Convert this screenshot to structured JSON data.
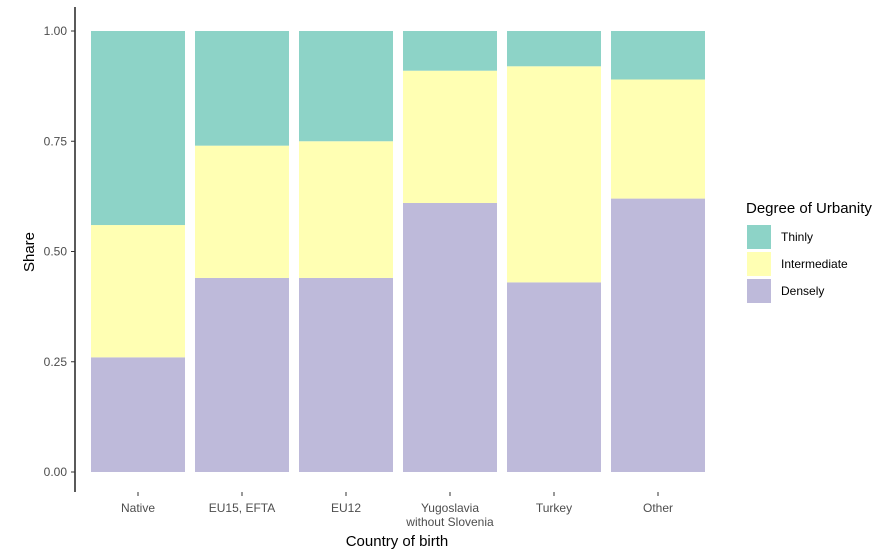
{
  "chart_data": {
    "type": "bar",
    "stacked": true,
    "normalized": true,
    "title": "",
    "xlabel": "Country of birth",
    "ylabel": "Share",
    "ylim": [
      0,
      1
    ],
    "yticks": [
      0.0,
      0.25,
      0.5,
      0.75,
      1.0
    ],
    "ytick_labels": [
      "0.00",
      "0.25",
      "0.50",
      "0.75",
      "1.00"
    ],
    "categories": [
      [
        "Native"
      ],
      [
        "EU15, EFTA"
      ],
      [
        "EU12"
      ],
      [
        "Yugoslavia",
        "without Slovenia"
      ],
      [
        "Turkey"
      ],
      [
        "Other"
      ]
    ],
    "series": [
      {
        "name": "Densely",
        "color": "#bebada",
        "values": [
          0.26,
          0.44,
          0.44,
          0.61,
          0.43,
          0.62
        ]
      },
      {
        "name": "Intermediate",
        "color": "#ffffb3",
        "values": [
          0.3,
          0.3,
          0.31,
          0.3,
          0.49,
          0.27
        ]
      },
      {
        "name": "Thinly",
        "color": "#8dd3c7",
        "values": [
          0.44,
          0.26,
          0.25,
          0.09,
          0.08,
          0.11
        ]
      }
    ],
    "legend": {
      "title": "Degree of Urbanity",
      "position": "right",
      "order": [
        "Thinly",
        "Intermediate",
        "Densely"
      ]
    },
    "grid": false
  }
}
